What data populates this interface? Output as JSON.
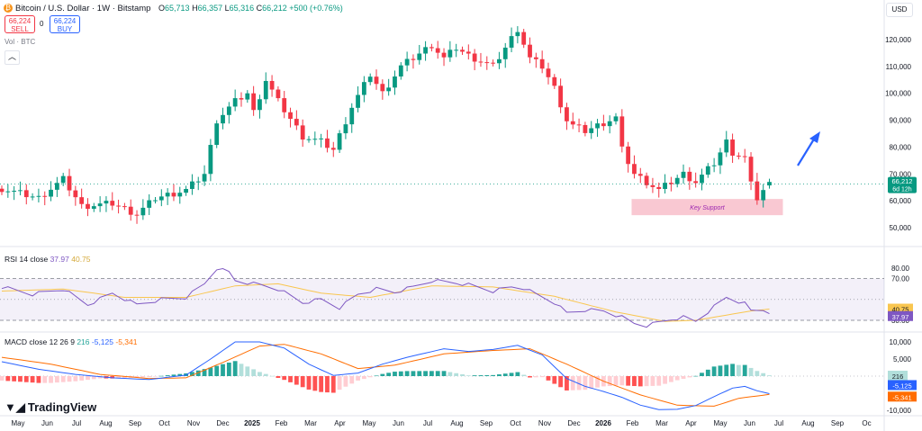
{
  "header": {
    "title": "Bitcoin / U.S. Dollar · 1W · Bitstamp",
    "ohlc": {
      "o_label": "O",
      "o": "65,713",
      "h_label": "H",
      "h": "66,357",
      "l_label": "L",
      "l": "65,316",
      "c_label": "C",
      "c": "66,212",
      "change": "+500 (+0.76%)"
    },
    "sell_price": "66,224",
    "sell_label": "SELL",
    "spread": "0",
    "buy_price": "66,224",
    "buy_label": "BUY",
    "vol_label": "Vol · BTC",
    "collapse_icon": "chevron-up-icon",
    "currency": "USD"
  },
  "colors": {
    "up": "#089981",
    "down": "#f23645",
    "rsi": "#7e57c2",
    "rsi_ma": "#f9c64f",
    "macd": "#2962ff",
    "signal": "#ff6d00",
    "support": "#f9c8d2",
    "arrow": "#2962ff"
  },
  "price_label": {
    "value": "66,212",
    "countdown": "6d 12h"
  },
  "annotation": {
    "text": "Key Support"
  },
  "rsi_panel": {
    "label": "RSI 14 close",
    "value": "37.97",
    "ma_value": "40.75",
    "ticks": [
      "80.00",
      "70.00",
      "30.00"
    ]
  },
  "macd_panel": {
    "label": "MACD close 12 26 9",
    "hist": "216",
    "macd": "-5,125",
    "signal": "-5,341",
    "ticks": [
      "10,000",
      "5,000",
      "-10,000"
    ]
  },
  "branding": {
    "text": "TradingView"
  },
  "chart_data": {
    "type": "candlestick",
    "price_axis": {
      "ticks": [
        "120,000",
        "110,000",
        "100,000",
        "90,000",
        "80,000",
        "70,000",
        "60,000",
        "50,000"
      ],
      "ylim": [
        45000,
        128000
      ]
    },
    "x_ticks": [
      "May",
      "Jun",
      "Jul",
      "Aug",
      "Sep",
      "Oct",
      "Nov",
      "Dec",
      "2025",
      "Feb",
      "Mar",
      "Apr",
      "May",
      "Jun",
      "Jul",
      "Aug",
      "Sep",
      "Oct",
      "Nov",
      "Dec",
      "2026",
      "Feb",
      "Mar",
      "Apr",
      "May",
      "Jun",
      "Jul",
      "Aug",
      "Sep",
      "Oc"
    ],
    "anchors": [
      [
        0,
        64500
      ],
      [
        6,
        61000
      ],
      [
        10,
        68000
      ],
      [
        13,
        58000
      ],
      [
        18,
        59000
      ],
      [
        22,
        55000
      ],
      [
        25,
        61000
      ],
      [
        30,
        64000
      ],
      [
        33,
        70000
      ],
      [
        35,
        90000
      ],
      [
        38,
        97000
      ],
      [
        40,
        100000
      ],
      [
        41,
        93000
      ],
      [
        43,
        105000
      ],
      [
        45,
        97000
      ],
      [
        49,
        84000
      ],
      [
        52,
        82000
      ],
      [
        54,
        79000
      ],
      [
        57,
        95000
      ],
      [
        60,
        107000
      ],
      [
        62,
        100000
      ],
      [
        65,
        110000
      ],
      [
        70,
        118000
      ],
      [
        72,
        113000
      ],
      [
        74,
        117000
      ],
      [
        76,
        114000
      ],
      [
        80,
        110000
      ],
      [
        82,
        117000
      ],
      [
        84,
        124000
      ],
      [
        86,
        113000
      ],
      [
        88,
        110000
      ],
      [
        90,
        102000
      ],
      [
        92,
        90000
      ],
      [
        93,
        88000
      ],
      [
        95,
        86000
      ],
      [
        98,
        89000
      ],
      [
        100,
        91000
      ],
      [
        101,
        79000
      ],
      [
        103,
        70000
      ],
      [
        105,
        67000
      ],
      [
        107,
        64000
      ],
      [
        109,
        67000
      ],
      [
        111,
        70000
      ],
      [
        113,
        67000
      ],
      [
        116,
        74000
      ],
      [
        118,
        82000
      ],
      [
        119,
        78000
      ],
      [
        121,
        76000
      ],
      [
        122,
        66000
      ],
      [
        123,
        61000
      ],
      [
        124,
        64000
      ],
      [
        125,
        66212
      ]
    ],
    "rsi_anchors": [
      [
        0,
        62
      ],
      [
        5,
        55
      ],
      [
        10,
        60
      ],
      [
        14,
        45
      ],
      [
        18,
        56
      ],
      [
        22,
        45
      ],
      [
        26,
        50
      ],
      [
        30,
        52
      ],
      [
        33,
        65
      ],
      [
        35,
        80
      ],
      [
        37,
        76
      ],
      [
        38,
        68
      ],
      [
        42,
        64
      ],
      [
        45,
        60
      ],
      [
        49,
        47
      ],
      [
        52,
        50
      ],
      [
        55,
        42
      ],
      [
        58,
        55
      ],
      [
        61,
        60
      ],
      [
        64,
        57
      ],
      [
        67,
        62
      ],
      [
        70,
        68
      ],
      [
        74,
        66
      ],
      [
        76,
        64
      ],
      [
        80,
        58
      ],
      [
        83,
        62
      ],
      [
        85,
        61
      ],
      [
        87,
        55
      ],
      [
        90,
        47
      ],
      [
        92,
        37
      ],
      [
        95,
        40
      ],
      [
        98,
        39
      ],
      [
        101,
        33
      ],
      [
        103,
        27
      ],
      [
        105,
        25
      ],
      [
        107,
        28
      ],
      [
        109,
        31
      ],
      [
        111,
        33
      ],
      [
        113,
        29
      ],
      [
        116,
        43
      ],
      [
        118,
        52
      ],
      [
        119,
        50
      ],
      [
        121,
        46
      ],
      [
        122,
        39
      ],
      [
        124,
        40
      ],
      [
        125,
        37.97
      ]
    ],
    "rsi_ma_anchors": [
      [
        0,
        58
      ],
      [
        10,
        60
      ],
      [
        20,
        52
      ],
      [
        30,
        52
      ],
      [
        38,
        63
      ],
      [
        45,
        65
      ],
      [
        52,
        56
      ],
      [
        60,
        52
      ],
      [
        70,
        63
      ],
      [
        80,
        62
      ],
      [
        90,
        53
      ],
      [
        100,
        38
      ],
      [
        108,
        29
      ],
      [
        113,
        30
      ],
      [
        118,
        35
      ],
      [
        122,
        39
      ],
      [
        125,
        40.75
      ]
    ],
    "macd_anchors": [
      [
        0,
        4200
      ],
      [
        6,
        2000
      ],
      [
        12,
        500
      ],
      [
        18,
        -500
      ],
      [
        24,
        -1000
      ],
      [
        30,
        300
      ],
      [
        34,
        5000
      ],
      [
        38,
        10000
      ],
      [
        42,
        10000
      ],
      [
        46,
        8200
      ],
      [
        50,
        3500
      ],
      [
        54,
        200
      ],
      [
        58,
        900
      ],
      [
        62,
        3500
      ],
      [
        66,
        5500
      ],
      [
        72,
        8000
      ],
      [
        76,
        7200
      ],
      [
        80,
        7800
      ],
      [
        84,
        9000
      ],
      [
        88,
        6200
      ],
      [
        92,
        -700
      ],
      [
        95,
        -3000
      ],
      [
        98,
        -4500
      ],
      [
        101,
        -6200
      ],
      [
        104,
        -8500
      ],
      [
        107,
        -9800
      ],
      [
        110,
        -9700
      ],
      [
        113,
        -8600
      ],
      [
        116,
        -6000
      ],
      [
        119,
        -3500
      ],
      [
        121,
        -3000
      ],
      [
        123,
        -4300
      ],
      [
        125,
        -5125
      ]
    ],
    "signal_anchors": [
      [
        0,
        5500
      ],
      [
        8,
        3500
      ],
      [
        16,
        500
      ],
      [
        24,
        -700
      ],
      [
        30,
        -500
      ],
      [
        36,
        4000
      ],
      [
        42,
        8800
      ],
      [
        46,
        9300
      ],
      [
        52,
        6500
      ],
      [
        58,
        2200
      ],
      [
        64,
        3200
      ],
      [
        72,
        6500
      ],
      [
        80,
        7500
      ],
      [
        86,
        8000
      ],
      [
        92,
        3500
      ],
      [
        98,
        -1500
      ],
      [
        104,
        -5500
      ],
      [
        110,
        -8500
      ],
      [
        116,
        -8800
      ],
      [
        120,
        -6500
      ],
      [
        125,
        -5341
      ]
    ]
  }
}
